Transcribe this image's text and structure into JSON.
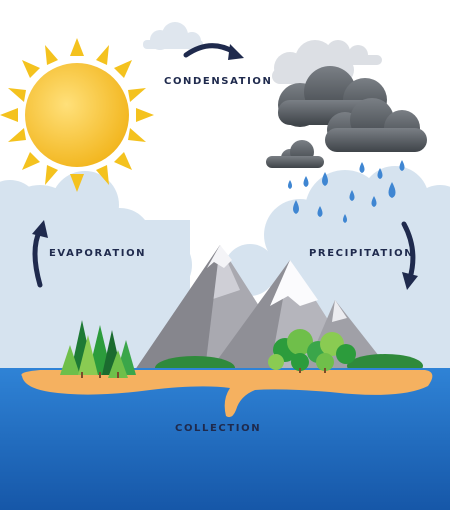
{
  "labels": {
    "condensation": "CONDENSATION",
    "evaporation": "EVAPORATION",
    "precipitation": "PRECIPITATION",
    "collection": "COLLECTION"
  },
  "colors": {
    "sky": "#ffffff",
    "cloud_light": "#d6e3ef",
    "cloud_storm": "#5d6268",
    "sun": "#f6c42c",
    "sun_rays": "#f4c21e",
    "water": "#1f6fc2",
    "sand": "#f5b160",
    "rain": "#3f86d2",
    "arrows": "#1f2a4d",
    "label": "#1f2a4d"
  },
  "icons": {
    "sun": "sun-icon",
    "rain": "rain-drop-icon",
    "cycle_arrows": "curved-arrow-icon"
  }
}
